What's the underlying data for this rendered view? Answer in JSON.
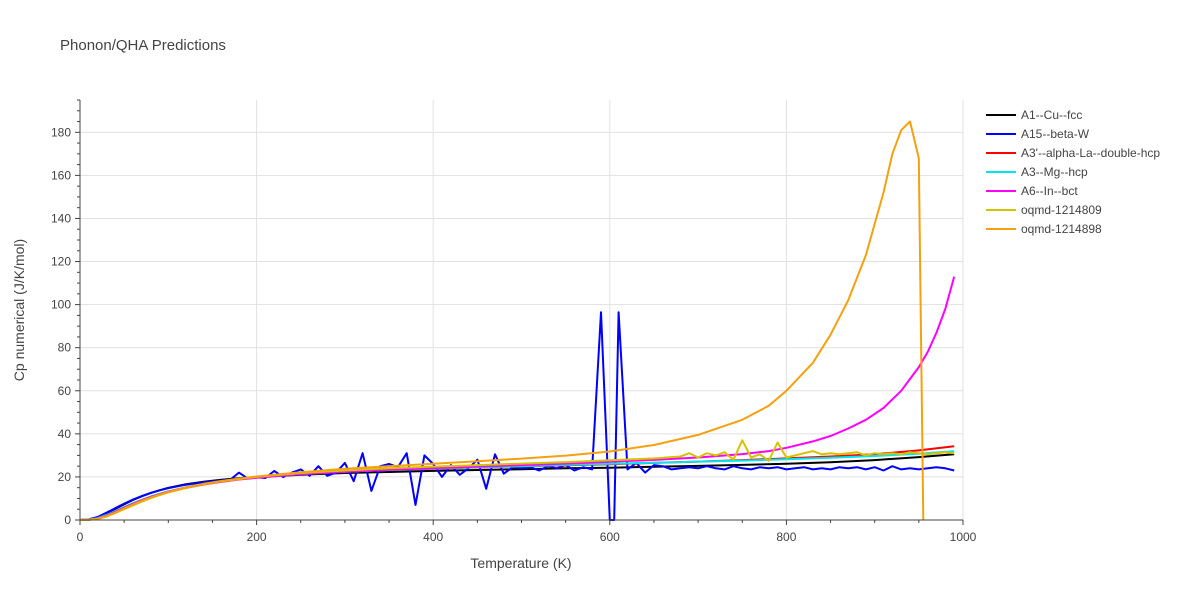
{
  "chart_data": {
    "type": "line",
    "title": "Phonon/QHA Predictions",
    "xlabel": "Temperature (K)",
    "ylabel": "Cp numerical (J/K/mol)",
    "xlim": [
      0,
      1000
    ],
    "ylim": [
      0,
      195
    ],
    "xticks": [
      0,
      200,
      400,
      600,
      800,
      1000
    ],
    "yticks": [
      0,
      20,
      40,
      60,
      80,
      100,
      120,
      140,
      160,
      180
    ],
    "grid": true,
    "legend_position": "top-right",
    "series": [
      {
        "name": "A1--Cu--fcc",
        "color": "#000000",
        "x": [
          0,
          10,
          20,
          30,
          40,
          50,
          60,
          70,
          80,
          90,
          100,
          120,
          140,
          160,
          180,
          200,
          250,
          300,
          350,
          400,
          450,
          500,
          550,
          600,
          650,
          700,
          750,
          800,
          850,
          900,
          950,
          990
        ],
        "y": [
          0,
          0.2,
          1.2,
          3.1,
          5.2,
          7.3,
          9.3,
          11.0,
          12.5,
          13.8,
          14.9,
          16.6,
          17.8,
          18.7,
          19.4,
          19.9,
          21.0,
          21.8,
          22.3,
          22.8,
          23.2,
          23.6,
          24.0,
          24.3,
          24.7,
          25.1,
          25.6,
          26.1,
          26.8,
          27.8,
          29.2,
          30.5
        ]
      },
      {
        "name": "A15--beta-W",
        "color": "#0000ff",
        "x": [
          0,
          10,
          20,
          30,
          40,
          50,
          60,
          70,
          80,
          90,
          100,
          120,
          140,
          160,
          170,
          180,
          190,
          200,
          210,
          220,
          230,
          240,
          250,
          260,
          270,
          280,
          290,
          300,
          310,
          320,
          330,
          340,
          350,
          360,
          370,
          380,
          390,
          400,
          410,
          420,
          430,
          440,
          450,
          460,
          470,
          480,
          490,
          500,
          510,
          520,
          530,
          540,
          550,
          560,
          570,
          580,
          590,
          600,
          605,
          610,
          620,
          630,
          640,
          650,
          660,
          670,
          680,
          690,
          700,
          710,
          720,
          730,
          740,
          750,
          760,
          770,
          780,
          790,
          800,
          810,
          820,
          830,
          840,
          850,
          860,
          870,
          880,
          890,
          900,
          910,
          920,
          930,
          940,
          950,
          960,
          970,
          980,
          990
        ],
        "y": [
          0,
          0.3,
          1.4,
          3.4,
          5.5,
          7.6,
          9.5,
          11.1,
          12.6,
          13.8,
          14.8,
          16.4,
          17.5,
          18.4,
          18.6,
          22.0,
          19.2,
          19.8,
          19.5,
          22.8,
          19.9,
          22.0,
          23.5,
          20.5,
          25.0,
          20.5,
          22.0,
          26.5,
          18.0,
          31.0,
          13.5,
          25.0,
          26.0,
          24.5,
          31.0,
          7.0,
          30.0,
          26.0,
          20.0,
          25.5,
          21.0,
          24.0,
          28.0,
          14.5,
          30.5,
          21.5,
          24.5,
          24.0,
          24.5,
          23.0,
          25.0,
          24.0,
          25.5,
          23.0,
          24.5,
          23.5,
          96.5,
          0,
          0,
          96.5,
          23.5,
          26.5,
          22.0,
          25.5,
          25.0,
          23.5,
          24.0,
          24.5,
          24.0,
          25.0,
          24.0,
          23.5,
          25.0,
          24.0,
          23.5,
          24.5,
          24.0,
          24.5,
          23.5,
          24.0,
          24.5,
          23.5,
          24.0,
          23.5,
          24.5,
          24.0,
          24.5,
          23.5,
          24.5,
          23.0,
          25.0,
          23.5,
          24.0,
          23.5,
          24.0,
          24.5,
          24.0,
          23.0
        ]
      },
      {
        "name": "A3'--alpha-La--double-hcp",
        "color": "#ff0000",
        "x": [
          0,
          10,
          20,
          30,
          40,
          50,
          60,
          70,
          80,
          90,
          100,
          120,
          140,
          160,
          180,
          200,
          250,
          300,
          350,
          400,
          450,
          500,
          550,
          600,
          650,
          700,
          750,
          800,
          850,
          900,
          950,
          990
        ],
        "y": [
          0,
          0.1,
          0.6,
          1.8,
          3.5,
          5.3,
          7.1,
          8.8,
          10.3,
          11.7,
          12.9,
          14.9,
          16.5,
          17.8,
          18.9,
          19.8,
          21.4,
          22.5,
          23.2,
          23.8,
          24.4,
          24.9,
          25.4,
          25.9,
          26.5,
          27.1,
          27.8,
          28.6,
          29.5,
          30.5,
          32.3,
          34.2
        ]
      },
      {
        "name": "A3--Mg--hcp",
        "color": "#00e5ee",
        "x": [
          0,
          10,
          20,
          30,
          40,
          50,
          60,
          70,
          80,
          90,
          100,
          120,
          140,
          160,
          180,
          200,
          250,
          300,
          350,
          400,
          450,
          500,
          550,
          600,
          650,
          700,
          750,
          800,
          850,
          900,
          950,
          990
        ],
        "y": [
          0,
          0.2,
          0.9,
          2.3,
          4.1,
          6.0,
          7.8,
          9.4,
          10.9,
          12.2,
          13.3,
          15.2,
          16.7,
          17.9,
          18.9,
          19.7,
          21.3,
          22.4,
          23.2,
          23.9,
          24.5,
          25.0,
          25.6,
          26.1,
          26.6,
          27.1,
          27.6,
          28.2,
          28.9,
          29.7,
          30.8,
          32.0
        ]
      },
      {
        "name": "A6--In--bct",
        "color": "#ff00ff",
        "x": [
          0,
          10,
          20,
          30,
          40,
          50,
          60,
          70,
          80,
          90,
          100,
          120,
          140,
          160,
          180,
          200,
          250,
          300,
          350,
          400,
          450,
          500,
          550,
          600,
          650,
          700,
          750,
          780,
          800,
          830,
          850,
          870,
          890,
          910,
          930,
          950,
          960,
          970,
          980,
          990
        ],
        "y": [
          0,
          0.1,
          0.7,
          2.0,
          3.8,
          5.7,
          7.5,
          9.2,
          10.7,
          12.0,
          13.2,
          15.1,
          16.6,
          17.8,
          18.8,
          19.6,
          21.3,
          22.4,
          23.3,
          24.1,
          24.8,
          25.5,
          26.2,
          27.0,
          27.9,
          29.0,
          30.6,
          32.0,
          33.5,
          36.5,
          39.0,
          42.5,
          46.5,
          52.0,
          60.0,
          71.0,
          78.0,
          87.0,
          98.0,
          113.0
        ]
      },
      {
        "name": "oqmd-1214809",
        "color": "#d4c400",
        "x": [
          0,
          10,
          20,
          30,
          40,
          50,
          60,
          70,
          80,
          90,
          100,
          120,
          140,
          160,
          180,
          200,
          250,
          300,
          350,
          400,
          450,
          500,
          550,
          600,
          650,
          680,
          690,
          700,
          710,
          720,
          730,
          740,
          750,
          760,
          770,
          780,
          790,
          800,
          810,
          820,
          830,
          840,
          850,
          860,
          870,
          880,
          890,
          900,
          910,
          920,
          930,
          940,
          950,
          960,
          970,
          980,
          990
        ],
        "y": [
          0,
          0.1,
          0.5,
          1.6,
          3.2,
          5.0,
          6.8,
          8.5,
          10.1,
          11.5,
          12.8,
          14.9,
          16.6,
          17.9,
          19.0,
          20.0,
          21.8,
          23.0,
          24.0,
          24.8,
          25.5,
          26.2,
          26.9,
          27.7,
          28.6,
          29.5,
          31.0,
          29.0,
          31.0,
          30.0,
          31.5,
          28.0,
          37.0,
          29.0,
          30.5,
          27.5,
          36.0,
          29.0,
          30.0,
          31.0,
          32.0,
          30.5,
          31.0,
          30.5,
          31.0,
          31.5,
          30.0,
          31.0,
          30.5,
          31.0,
          30.5,
          31.5,
          31.0,
          30.5,
          31.0,
          31.5,
          31.0
        ]
      },
      {
        "name": "oqmd-1214898",
        "color": "#f5a00f",
        "x": [
          0,
          10,
          20,
          30,
          40,
          50,
          60,
          70,
          80,
          90,
          100,
          120,
          140,
          160,
          180,
          200,
          250,
          300,
          350,
          400,
          450,
          500,
          550,
          600,
          650,
          700,
          750,
          780,
          800,
          830,
          850,
          870,
          890,
          910,
          920,
          930,
          940,
          950,
          955
        ],
        "y": [
          0,
          0.1,
          0.6,
          1.8,
          3.5,
          5.4,
          7.2,
          8.9,
          10.4,
          11.8,
          13.0,
          15.1,
          16.8,
          18.1,
          19.2,
          20.2,
          22.2,
          23.8,
          25.0,
          26.1,
          27.3,
          28.5,
          29.9,
          31.8,
          34.8,
          39.5,
          46.5,
          53.0,
          60.0,
          73.0,
          86.0,
          102.0,
          123.0,
          152.0,
          170.0,
          181.0,
          185.0,
          168.0,
          0
        ]
      }
    ]
  }
}
